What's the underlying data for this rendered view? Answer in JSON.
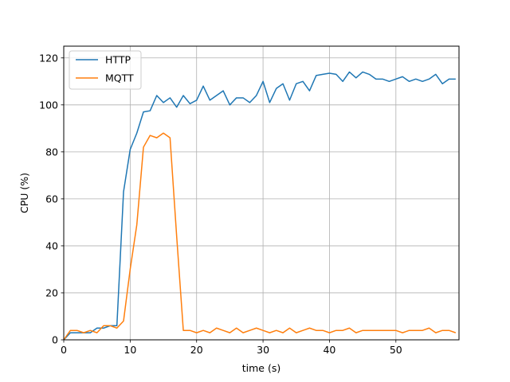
{
  "chart_data": {
    "type": "line",
    "xlabel": "time (s)",
    "ylabel": "CPU (%)",
    "xlim": [
      0,
      59.5
    ],
    "ylim": [
      0,
      125
    ],
    "xticks": [
      0,
      10,
      20,
      30,
      40,
      50
    ],
    "yticks": [
      0,
      20,
      40,
      60,
      80,
      100,
      120
    ],
    "grid": true,
    "legend_position": "top-left",
    "series": [
      {
        "name": "HTTP",
        "color": "#1f77b4",
        "x": [
          0,
          1,
          2,
          3,
          4,
          5,
          6,
          7,
          8,
          9,
          10,
          11,
          12,
          13,
          14,
          15,
          16,
          17,
          18,
          19,
          20,
          21,
          22,
          23,
          24,
          25,
          26,
          27,
          28,
          29,
          30,
          31,
          32,
          33,
          34,
          35,
          36,
          37,
          38,
          39,
          40,
          41,
          42,
          43,
          44,
          45,
          46,
          47,
          48,
          49,
          50,
          51,
          52,
          53,
          54,
          55,
          56,
          57,
          58,
          59
        ],
        "values": [
          0,
          3,
          3,
          3,
          3,
          5,
          5,
          6,
          6,
          63,
          81,
          88,
          97,
          97.5,
          104,
          101,
          103,
          99,
          104,
          100.5,
          102,
          108,
          102,
          104,
          106,
          100,
          103,
          103,
          101,
          104,
          110,
          101,
          107,
          109,
          102,
          109,
          110,
          106,
          112.5,
          113,
          113.5,
          113,
          110,
          114,
          111.5,
          114,
          113,
          111,
          111,
          110,
          111,
          112,
          110,
          111,
          110,
          111,
          113,
          109,
          111,
          111
        ]
      },
      {
        "name": "MQTT",
        "color": "#ff7f0e",
        "x": [
          0,
          1,
          2,
          3,
          4,
          5,
          6,
          7,
          8,
          9,
          10,
          11,
          12,
          13,
          14,
          15,
          16,
          17,
          18,
          19,
          20,
          21,
          22,
          23,
          24,
          25,
          26,
          27,
          28,
          29,
          30,
          31,
          32,
          33,
          34,
          35,
          36,
          37,
          38,
          39,
          40,
          41,
          42,
          43,
          44,
          45,
          46,
          47,
          48,
          49,
          50,
          51,
          52,
          53,
          54,
          55,
          56,
          57,
          58,
          59
        ],
        "values": [
          0,
          4,
          4,
          3,
          4,
          3,
          6,
          6,
          5,
          8,
          30,
          49,
          82,
          87,
          86,
          88,
          86,
          44,
          4,
          4,
          3,
          4,
          3,
          5,
          4,
          3,
          5,
          3,
          4,
          5,
          4,
          3,
          4,
          3,
          5,
          3,
          4,
          5,
          4,
          4,
          3,
          4,
          4,
          5,
          3,
          4,
          4,
          4,
          4,
          4,
          4,
          3,
          4,
          4,
          4,
          5,
          3,
          4,
          4,
          3
        ]
      }
    ]
  }
}
